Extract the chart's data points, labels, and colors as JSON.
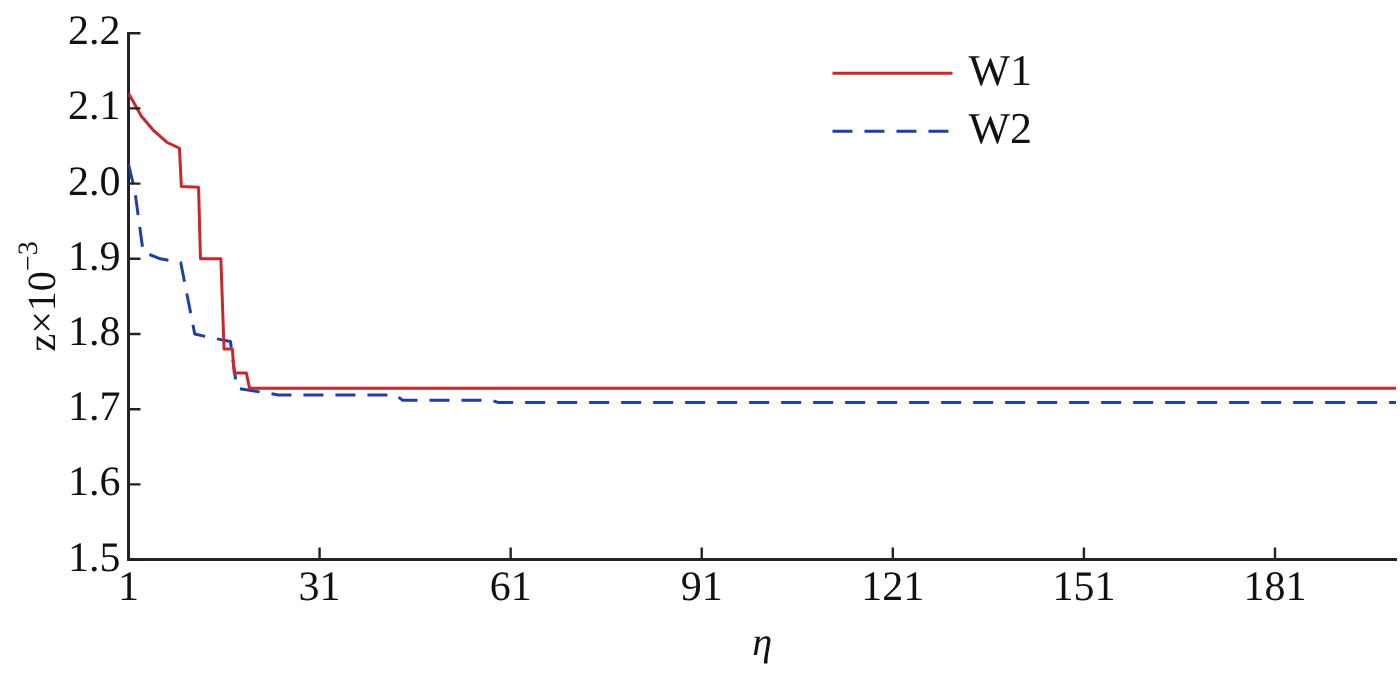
{
  "chart_data": {
    "type": "line",
    "xlabel": "η",
    "ylabel": "z×10$^{−3}$",
    "xlim": [
      1,
      200
    ],
    "xticks": [
      1,
      31,
      61,
      91,
      121,
      151,
      181
    ],
    "ylim": [
      1.5,
      2.2
    ],
    "yticks": [
      1.5,
      1.6,
      1.7,
      1.8,
      1.9,
      {
        "value": 2,
        "label": "2.0"
      },
      2.1,
      2.2
    ],
    "grid": false,
    "legend": "top right",
    "marker": "none",
    "series": [
      {
        "name": "W1",
        "color": "#c8282d",
        "line_style": "solid",
        "x": [
          1,
          3,
          5,
          7,
          9,
          9.3,
          12,
          12.3,
          15.5,
          16,
          17.3,
          17.6,
          19.5,
          20,
          200
        ],
        "values": [
          2.12,
          2.09,
          2.07,
          2.055,
          2.047,
          1.996,
          1.995,
          1.9,
          1.9,
          1.78,
          1.78,
          1.748,
          1.748,
          1.728,
          1.728
        ]
      },
      {
        "name": "W2",
        "color": "#1f3fa5",
        "line_style": "dashed",
        "x": [
          1,
          2,
          3.3,
          6,
          9.2,
          11.4,
          14,
          17,
          18,
          24.5,
          43,
          44,
          58,
          59,
          200
        ],
        "values": [
          2.026,
          1.99,
          1.909,
          1.9,
          1.895,
          1.8,
          1.795,
          1.79,
          1.728,
          1.719,
          1.719,
          1.712,
          1.712,
          1.709,
          1.709
        ]
      }
    ]
  }
}
